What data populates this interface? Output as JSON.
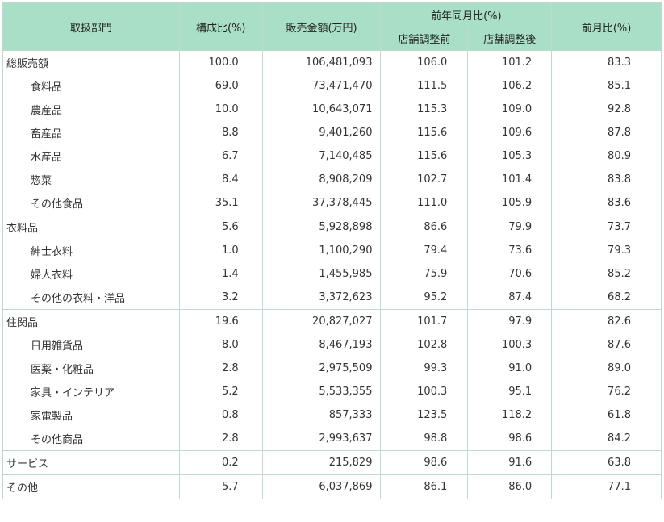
{
  "header": {
    "department": "取扱部門",
    "composition": "構成比(%)",
    "sales": "販売金額(万円)",
    "yoy": "前年同月比(%)",
    "yoy_before": "店舗調整前",
    "yoy_after": "店舗調整後",
    "mom": "前月比(%)"
  },
  "rows": [
    {
      "name": "総販売額",
      "comp": "100.0",
      "sales": "106,481,093",
      "before": "106.0",
      "after": "101.2",
      "mom": "83.3"
    },
    {
      "name": "食料品",
      "comp": "69.0",
      "sales": "73,471,470",
      "before": "111.5",
      "after": "106.2",
      "mom": "85.1"
    },
    {
      "name": "農産品",
      "comp": "10.0",
      "sales": "10,643,071",
      "before": "115.3",
      "after": "109.0",
      "mom": "92.8"
    },
    {
      "name": "畜産品",
      "comp": "8.8",
      "sales": "9,401,260",
      "before": "115.6",
      "after": "109.6",
      "mom": "87.8"
    },
    {
      "name": "水産品",
      "comp": "6.7",
      "sales": "7,140,485",
      "before": "115.6",
      "after": "105.3",
      "mom": "80.9"
    },
    {
      "name": "惣菜",
      "comp": "8.4",
      "sales": "8,908,209",
      "before": "102.7",
      "after": "101.4",
      "mom": "83.8"
    },
    {
      "name": "その他食品",
      "comp": "35.1",
      "sales": "37,378,445",
      "before": "111.0",
      "after": "105.9",
      "mom": "83.6"
    },
    {
      "name": "衣料品",
      "comp": "5.6",
      "sales": "5,928,898",
      "before": "86.6",
      "after": "79.9",
      "mom": "73.7"
    },
    {
      "name": "紳士衣料",
      "comp": "1.0",
      "sales": "1,100,290",
      "before": "79.4",
      "after": "73.6",
      "mom": "79.3"
    },
    {
      "name": "婦人衣料",
      "comp": "1.4",
      "sales": "1,455,985",
      "before": "75.9",
      "after": "70.6",
      "mom": "85.2"
    },
    {
      "name": "その他の衣料・洋品",
      "comp": "3.2",
      "sales": "3,372,623",
      "before": "95.2",
      "after": "87.4",
      "mom": "68.2"
    },
    {
      "name": "住関品",
      "comp": "19.6",
      "sales": "20,827,027",
      "before": "101.7",
      "after": "97.9",
      "mom": "82.6"
    },
    {
      "name": "日用雑貨品",
      "comp": "8.0",
      "sales": "8,467,193",
      "before": "102.8",
      "after": "100.3",
      "mom": "87.6"
    },
    {
      "name": "医薬・化粧品",
      "comp": "2.8",
      "sales": "2,975,509",
      "before": "99.3",
      "after": "91.0",
      "mom": "89.0"
    },
    {
      "name": "家具・インテリア",
      "comp": "5.2",
      "sales": "5,533,355",
      "before": "100.3",
      "after": "95.1",
      "mom": "76.2"
    },
    {
      "name": "家電製品",
      "comp": "0.8",
      "sales": "857,333",
      "before": "123.5",
      "after": "118.2",
      "mom": "61.8"
    },
    {
      "name": "その他商品",
      "comp": "2.8",
      "sales": "2,993,637",
      "before": "98.8",
      "after": "98.6",
      "mom": "84.2"
    },
    {
      "name": "サービス",
      "comp": "0.2",
      "sales": "215,829",
      "before": "98.6",
      "after": "91.6",
      "mom": "63.8"
    },
    {
      "name": "その他",
      "comp": "5.7",
      "sales": "6,037,869",
      "before": "86.1",
      "after": "86.0",
      "mom": "77.1"
    }
  ]
}
